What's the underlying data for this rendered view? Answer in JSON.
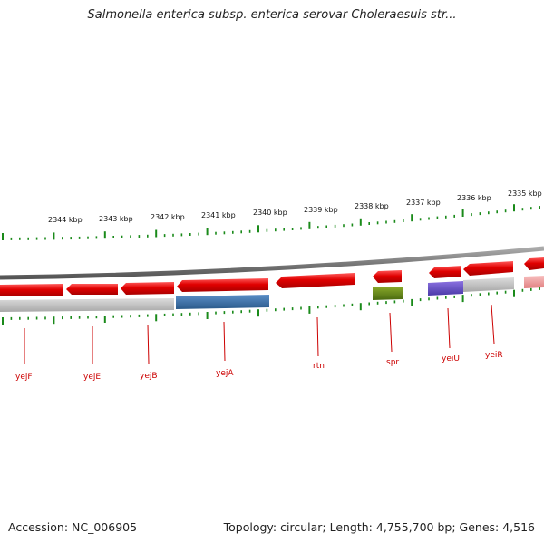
{
  "title": "Salmonella enterica subsp. enterica serovar Choleraesuis str...",
  "footer": {
    "accession": "Accession: NC_006905",
    "summary": "Topology: circular; Length: 4,755,700 bp; Genes: 4,516"
  },
  "colors": {
    "gene_red": "#e00000",
    "gene_label": "#cc0000",
    "tick_green": "#1a8a1a",
    "backbone_gray": "#8a8a8a",
    "cog_blue": "#3a6fa8",
    "cog_olive": "#6a8a1a",
    "cog_purple": "#6a4ec8",
    "cog_gray": "#c0c0c0",
    "cog_pink": "#f0a0a0"
  },
  "ticks": [
    "2344 kbp",
    "2343 kbp",
    "2342 kbp",
    "2341 kbp",
    "2340 kbp",
    "2339 kbp",
    "2338 kbp",
    "2337 kbp",
    "2336 kbp",
    "2335 kbp"
  ],
  "gene_labels": [
    "yejF",
    "yejE",
    "yejB",
    "yejA",
    "rtn",
    "spr",
    "yeiU",
    "yeiR"
  ]
}
